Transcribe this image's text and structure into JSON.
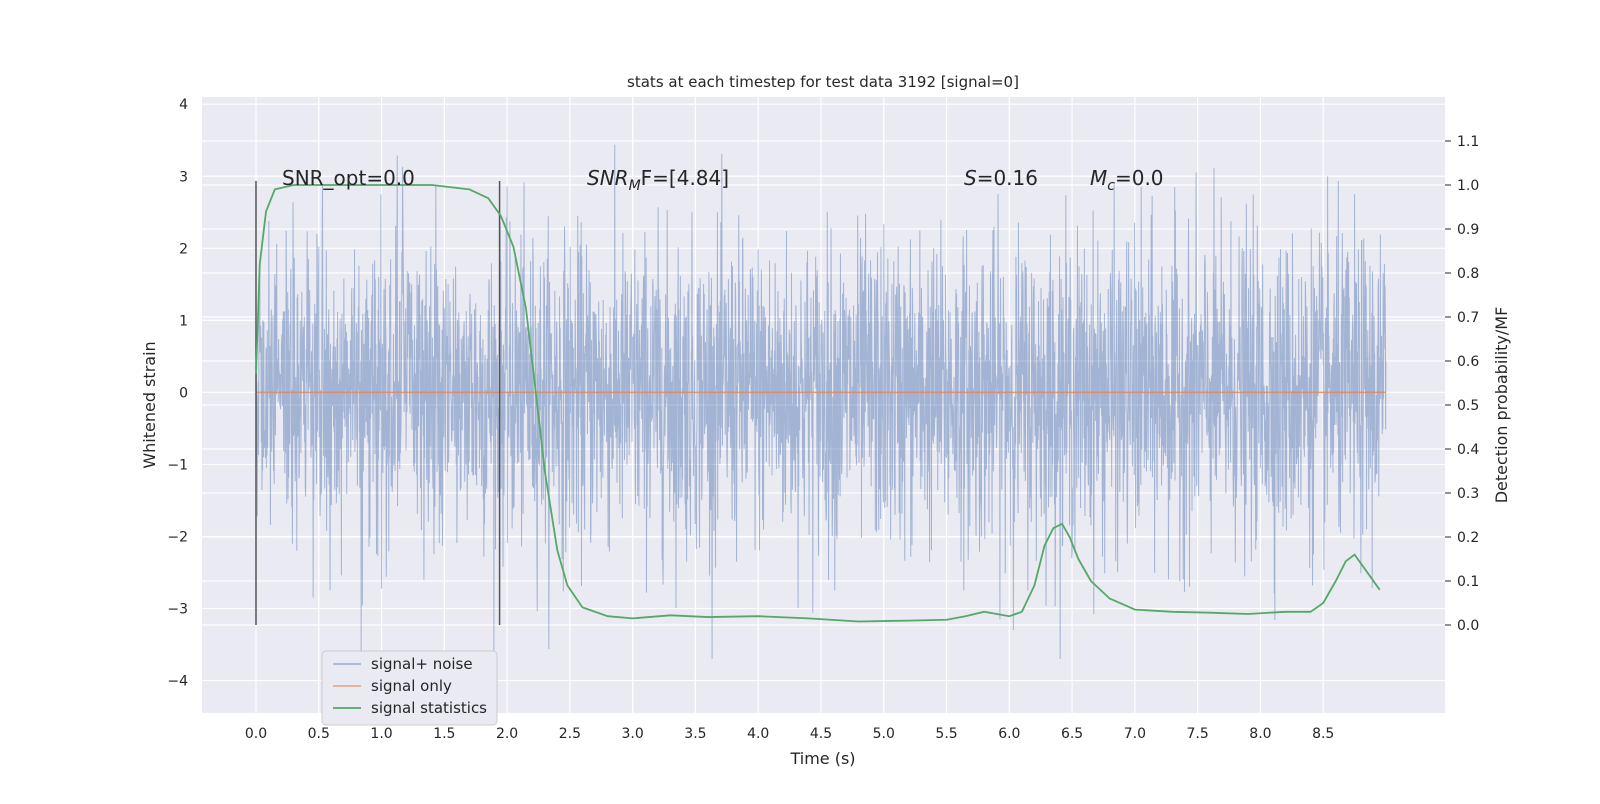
{
  "chart_data": {
    "type": "line",
    "title": "stats at each timestep for test data 3192 [signal=0]",
    "xlabel": "Time (s)",
    "ylabel": "Whitened strain",
    "ylabel_right": "Detection probability/MF",
    "xlim": [
      -0.43,
      9.47
    ],
    "ylim": [
      -4.45,
      4.1
    ],
    "ylim_right": [
      -0.2,
      1.2
    ],
    "x_ticks": [
      "0.0",
      "0.5",
      "1.0",
      "1.5",
      "2.0",
      "2.5",
      "3.0",
      "3.5",
      "4.0",
      "4.5",
      "5.0",
      "5.5",
      "6.0",
      "6.5",
      "7.0",
      "7.5",
      "8.0",
      "8.5"
    ],
    "y_ticks": [
      "4",
      "3",
      "2",
      "1",
      "0",
      "−1",
      "−2",
      "−3",
      "−4"
    ],
    "y_ticks_right": [
      "1.1",
      "1.0",
      "0.9",
      "0.8",
      "0.7",
      "0.6",
      "0.5",
      "0.4",
      "0.3",
      "0.2",
      "0.1",
      "0.0"
    ],
    "grid": true,
    "legend_position": "lower-left",
    "colors": {
      "background": "#eaeaf2",
      "grid": "#ffffff",
      "noise": "#4c72b0",
      "signal": "#dd8452",
      "statistics": "#55a868",
      "window": "#555555"
    },
    "annotations": {
      "snr_opt": "SNR_opt=0.0",
      "snr_mf_main": "SNR",
      "snr_mf_sub": "M",
      "snr_mf_tail": "F=[4.84]",
      "s_label": "S",
      "s_value": "=0.16",
      "mc_main": "M",
      "mc_sub": "c",
      "mc_value": "=0.0"
    },
    "window_markers_x": [
      0.0,
      1.94
    ],
    "series": [
      {
        "name": "signal+ noise",
        "axis": "left",
        "x_range": [
          0.0,
          9.0
        ],
        "y_range": [
          -3.7,
          3.7
        ],
        "note_samples": "dense noise trace, approx. Gaussian, sigma ~1"
      },
      {
        "name": "signal only",
        "axis": "left",
        "x": [
          0.0,
          9.0
        ],
        "y": [
          0.0,
          0.0
        ]
      },
      {
        "name": "signal statistics",
        "axis": "right",
        "x": [
          0.0,
          0.03,
          0.08,
          0.15,
          0.3,
          0.6,
          1.0,
          1.4,
          1.7,
          1.85,
          1.95,
          2.05,
          2.15,
          2.22,
          2.3,
          2.4,
          2.48,
          2.6,
          2.8,
          3.0,
          3.3,
          3.6,
          4.0,
          4.4,
          4.8,
          5.2,
          5.5,
          5.65,
          5.8,
          5.9,
          6.0,
          6.1,
          6.2,
          6.28,
          6.35,
          6.42,
          6.48,
          6.55,
          6.65,
          6.8,
          7.0,
          7.3,
          7.6,
          7.9,
          8.2,
          8.4,
          8.5,
          8.6,
          8.68,
          8.75,
          8.85,
          8.95
        ],
        "y": [
          0.57,
          0.82,
          0.94,
          0.99,
          1.0,
          1.0,
          1.0,
          1.0,
          0.99,
          0.97,
          0.93,
          0.86,
          0.72,
          0.55,
          0.35,
          0.17,
          0.09,
          0.04,
          0.02,
          0.015,
          0.022,
          0.018,
          0.02,
          0.015,
          0.008,
          0.01,
          0.012,
          0.02,
          0.03,
          0.025,
          0.02,
          0.03,
          0.09,
          0.18,
          0.22,
          0.23,
          0.2,
          0.15,
          0.1,
          0.06,
          0.035,
          0.03,
          0.028,
          0.025,
          0.03,
          0.03,
          0.05,
          0.1,
          0.145,
          0.16,
          0.12,
          0.08
        ]
      }
    ]
  }
}
